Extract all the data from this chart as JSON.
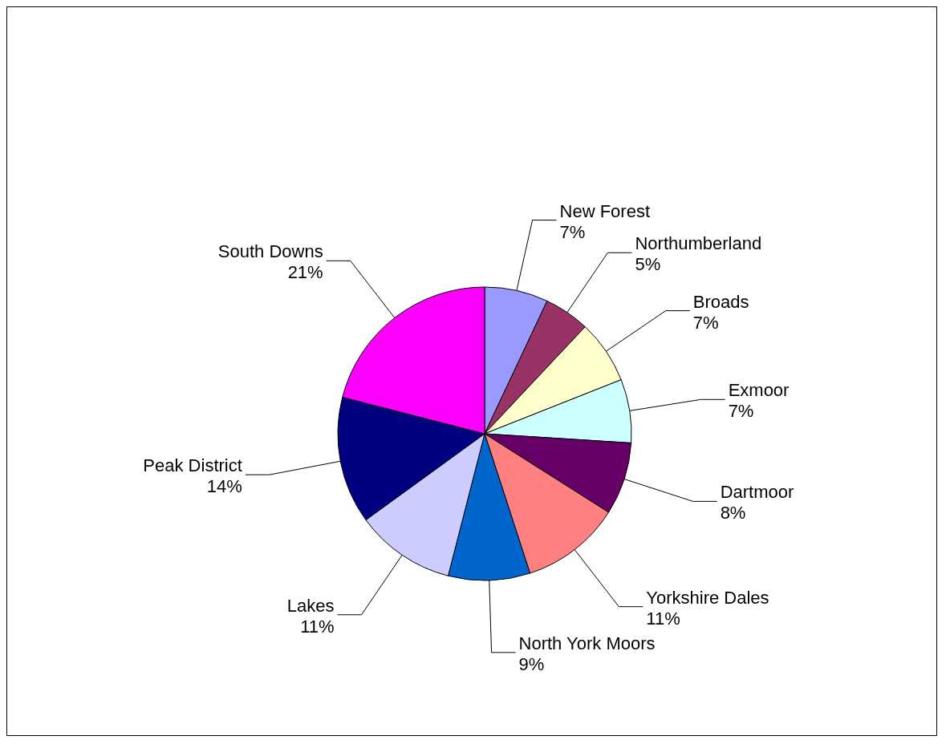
{
  "chart_data": {
    "type": "pie",
    "categories": [
      "New Forest",
      "Northumberland",
      "Broads",
      "Exmoor",
      "Dartmoor",
      "Yorkshire Dales",
      "North York Moors",
      "Lakes",
      "Peak District",
      "South Downs"
    ],
    "values": [
      7,
      5,
      7,
      7,
      8,
      11,
      9,
      11,
      14,
      21
    ],
    "colors": [
      "#9999ff",
      "#993366",
      "#ffffcc",
      "#ccffff",
      "#660066",
      "#ff8080",
      "#0066cc",
      "#ccccff",
      "#000080",
      "#ff00ff"
    ],
    "value_labels": [
      "7%",
      "5%",
      "7%",
      "7%",
      "8%",
      "11%",
      "9%",
      "11%",
      "14%",
      "21%"
    ],
    "legend": false
  }
}
